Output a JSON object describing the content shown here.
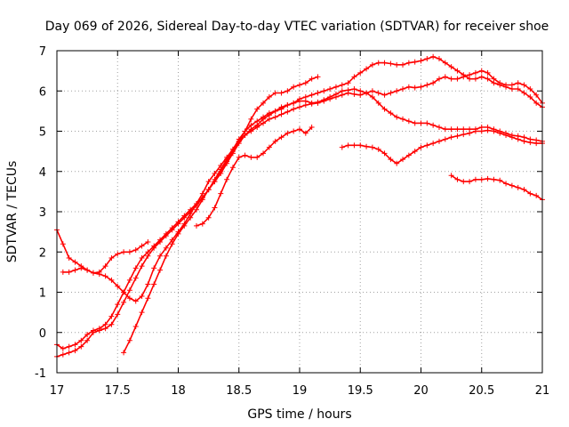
{
  "chart_data": {
    "type": "scatter",
    "title": "Day 069 of 2026, Sidereal Day-to-day VTEC variation (SDTVAR) for receiver shoe",
    "xlabel": "GPS time / hours",
    "ylabel": "SDTVAR / TECUs",
    "xlim": [
      17,
      21
    ],
    "ylim": [
      -1,
      7
    ],
    "x_ticks": [
      17,
      17.5,
      18,
      18.5,
      19,
      19.5,
      20,
      20.5,
      21
    ],
    "x_tick_labels": [
      "17",
      "17.5",
      "18",
      "18.5",
      "19",
      "19.5",
      "20",
      "20.5",
      "21"
    ],
    "y_ticks": [
      -1,
      0,
      1,
      2,
      3,
      4,
      5,
      6,
      7
    ],
    "y_tick_labels": [
      "-1",
      "0",
      "1",
      "2",
      "3",
      "4",
      "5",
      "6",
      "7"
    ],
    "grid": true,
    "marker": "+",
    "color": "#ff0000",
    "series": [
      {
        "name": "trace-1",
        "x": [
          17.0,
          17.05,
          17.1,
          17.15,
          17.2,
          17.25,
          17.3,
          17.35,
          17.4,
          17.45,
          17.5,
          17.55,
          17.6,
          17.65,
          17.7,
          17.75,
          17.8,
          17.85,
          17.9,
          17.95,
          18.0,
          18.05,
          18.1,
          18.15,
          18.2,
          18.25,
          18.3,
          18.35,
          18.4,
          18.45,
          18.5,
          18.55,
          18.6,
          18.65,
          18.7,
          18.75,
          18.8,
          18.85,
          18.9,
          18.95,
          19.0,
          19.05,
          19.1,
          19.15
        ],
        "y": [
          2.55,
          2.2,
          1.85,
          1.75,
          1.65,
          1.55,
          1.48,
          1.45,
          1.4,
          1.3,
          1.15,
          1.0,
          0.85,
          0.78,
          0.9,
          1.2,
          1.6,
          1.9,
          2.1,
          2.3,
          2.5,
          2.7,
          2.95,
          3.2,
          3.45,
          3.75,
          3.95,
          4.15,
          4.35,
          4.55,
          4.8,
          5.0,
          5.3,
          5.55,
          5.7,
          5.85,
          5.95,
          5.95,
          6.0,
          6.1,
          6.15,
          6.2,
          6.3,
          6.35
        ]
      },
      {
        "name": "trace-2",
        "x": [
          17.05,
          17.1,
          17.15,
          17.2,
          17.25,
          17.3,
          17.35,
          17.4,
          17.45,
          17.5,
          17.55,
          17.6,
          17.65,
          17.7,
          17.75
        ],
        "y": [
          1.5,
          1.5,
          1.55,
          1.6,
          1.55,
          1.48,
          1.5,
          1.65,
          1.85,
          1.95,
          2.0,
          2.0,
          2.05,
          2.15,
          2.25
        ]
      },
      {
        "name": "trace-3",
        "x": [
          17.0,
          17.05,
          17.1,
          17.15,
          17.2,
          17.25,
          17.3,
          17.35,
          17.4,
          17.45,
          17.5,
          17.55,
          17.6,
          17.65,
          17.7,
          17.75,
          17.8,
          17.85,
          17.9,
          17.95,
          18.0,
          18.05,
          18.1,
          18.15,
          18.2,
          18.25,
          18.3,
          18.35,
          18.4,
          18.45,
          18.5,
          18.55,
          18.6,
          18.65,
          18.7,
          18.75,
          18.8,
          18.85,
          18.9,
          18.95,
          19.0,
          19.05,
          19.1,
          19.15,
          19.2,
          19.25,
          19.3,
          19.35,
          19.4,
          19.45,
          19.5,
          19.55,
          19.6,
          19.65,
          19.7,
          19.75,
          19.8,
          19.85,
          19.9,
          19.95,
          20.0,
          20.05,
          20.1,
          20.15,
          20.2,
          20.25,
          20.3,
          20.35,
          20.4,
          20.45,
          20.5,
          20.55,
          20.6,
          20.65,
          20.7,
          20.75,
          20.8,
          20.85,
          20.9,
          20.95,
          21.0
        ],
        "y": [
          -0.3,
          -0.4,
          -0.35,
          -0.3,
          -0.2,
          -0.05,
          0.05,
          0.1,
          0.2,
          0.4,
          0.7,
          1.0,
          1.3,
          1.6,
          1.85,
          2.0,
          2.15,
          2.3,
          2.45,
          2.6,
          2.75,
          2.9,
          3.05,
          3.2,
          3.35,
          3.55,
          3.75,
          3.95,
          4.2,
          4.45,
          4.7,
          4.9,
          5.05,
          5.15,
          5.3,
          5.4,
          5.5,
          5.55,
          5.65,
          5.7,
          5.75,
          5.75,
          5.7,
          5.72,
          5.78,
          5.85,
          5.92,
          6.0,
          6.02,
          6.05,
          6.0,
          5.95,
          5.85,
          5.7,
          5.55,
          5.45,
          5.35,
          5.3,
          5.25,
          5.2,
          5.2,
          5.2,
          5.15,
          5.1,
          5.05,
          5.05,
          5.05,
          5.05,
          5.05,
          5.05,
          5.1,
          5.1,
          5.05,
          5.0,
          4.95,
          4.9,
          4.88,
          4.85,
          4.8,
          4.78,
          4.75
        ]
      },
      {
        "name": "trace-4",
        "x": [
          17.0,
          17.05,
          17.1,
          17.15,
          17.2,
          17.25,
          17.3,
          17.35,
          17.4,
          17.45,
          17.5,
          17.55,
          17.6,
          17.65,
          17.7,
          17.75,
          17.8,
          17.85,
          17.9,
          17.95,
          18.0,
          18.05,
          18.1,
          18.15,
          18.2,
          18.25,
          18.3,
          18.35,
          18.4,
          18.45,
          18.5,
          18.55,
          18.6,
          18.65,
          18.7,
          18.75,
          18.8,
          18.85,
          18.9,
          18.95,
          19.0,
          19.05,
          19.1,
          19.15,
          19.2,
          19.25,
          19.3,
          19.35,
          19.4,
          19.45,
          19.5,
          19.55,
          19.6,
          19.65,
          19.7,
          19.75,
          19.8,
          19.85,
          19.9,
          19.95,
          20.0,
          20.05,
          20.1,
          20.15,
          20.2,
          20.25,
          20.3,
          20.35,
          20.4,
          20.45,
          20.5,
          20.55,
          20.6,
          20.65,
          20.7,
          20.75,
          20.8,
          20.85,
          20.9,
          20.95,
          21.0
        ],
        "y": [
          -0.6,
          -0.55,
          -0.5,
          -0.45,
          -0.35,
          -0.2,
          0.0,
          0.05,
          0.1,
          0.2,
          0.45,
          0.75,
          1.05,
          1.35,
          1.65,
          1.9,
          2.1,
          2.25,
          2.4,
          2.55,
          2.7,
          2.85,
          3.0,
          3.15,
          3.35,
          3.55,
          3.75,
          4.0,
          4.25,
          4.5,
          4.75,
          5.0,
          5.15,
          5.25,
          5.35,
          5.45,
          5.5,
          5.6,
          5.65,
          5.7,
          5.8,
          5.85,
          5.9,
          5.95,
          6.0,
          6.05,
          6.1,
          6.15,
          6.2,
          6.35,
          6.45,
          6.55,
          6.65,
          6.7,
          6.7,
          6.68,
          6.65,
          6.65,
          6.7,
          6.72,
          6.75,
          6.8,
          6.85,
          6.8,
          6.7,
          6.6,
          6.5,
          6.4,
          6.3,
          6.3,
          6.35,
          6.3,
          6.2,
          6.15,
          6.1,
          6.05,
          6.05,
          5.95,
          5.85,
          5.7,
          5.6
        ]
      },
      {
        "name": "trace-5",
        "x": [
          17.55,
          17.6,
          17.65,
          17.7,
          17.75,
          17.8,
          17.85,
          17.9,
          17.95,
          18.0,
          18.05,
          18.1,
          18.15,
          18.2,
          18.25,
          18.3,
          18.35,
          18.4,
          18.45,
          18.5,
          18.55,
          18.6,
          18.65,
          18.7,
          18.75,
          18.8,
          18.85,
          18.9,
          18.95,
          19.0,
          19.05,
          19.1,
          19.15,
          19.2,
          19.25,
          19.3,
          19.35,
          19.4,
          19.45,
          19.5,
          19.55,
          19.6,
          19.65,
          19.7,
          19.75,
          19.8,
          19.85,
          19.9,
          19.95,
          20.0,
          20.05,
          20.1,
          20.15,
          20.2,
          20.25,
          20.3,
          20.35,
          20.4,
          20.45,
          20.5,
          20.55,
          20.6,
          20.65,
          20.7,
          20.75,
          20.8,
          20.85,
          20.9,
          20.95,
          21.0
        ],
        "y": [
          -0.5,
          -0.2,
          0.15,
          0.5,
          0.85,
          1.2,
          1.55,
          1.9,
          2.2,
          2.45,
          2.65,
          2.85,
          3.05,
          3.3,
          3.55,
          3.8,
          4.05,
          4.3,
          4.55,
          4.75,
          4.9,
          5.0,
          5.1,
          5.2,
          5.3,
          5.35,
          5.42,
          5.48,
          5.55,
          5.6,
          5.65,
          5.68,
          5.7,
          5.75,
          5.8,
          5.85,
          5.9,
          5.95,
          5.92,
          5.9,
          5.95,
          6.0,
          5.95,
          5.9,
          5.95,
          6.0,
          6.05,
          6.1,
          6.08,
          6.1,
          6.15,
          6.2,
          6.3,
          6.35,
          6.3,
          6.3,
          6.35,
          6.4,
          6.45,
          6.5,
          6.45,
          6.3,
          6.2,
          6.15,
          6.15,
          6.2,
          6.15,
          6.05,
          5.9,
          5.7
        ]
      },
      {
        "name": "trace-6",
        "x": [
          18.15,
          18.2,
          18.25,
          18.3,
          18.35,
          18.4,
          18.45,
          18.5,
          18.55,
          18.6,
          18.65,
          18.7,
          18.75,
          18.8,
          18.85,
          18.9,
          18.95,
          19.0,
          19.05,
          19.1
        ],
        "y": [
          2.65,
          2.7,
          2.85,
          3.1,
          3.45,
          3.8,
          4.1,
          4.35,
          4.4,
          4.35,
          4.35,
          4.45,
          4.6,
          4.75,
          4.85,
          4.95,
          5.0,
          5.05,
          4.95,
          5.1
        ]
      },
      {
        "name": "trace-7",
        "x": [
          19.35,
          19.4,
          19.45,
          19.5,
          19.55,
          19.6,
          19.65,
          19.7,
          19.75,
          19.8,
          19.85,
          19.9,
          19.95,
          20.0,
          20.05,
          20.1,
          20.15,
          20.2,
          20.25,
          20.3,
          20.35,
          20.4,
          20.45,
          20.5,
          20.55,
          20.6,
          20.65,
          20.7,
          20.75,
          20.8,
          20.85,
          20.9,
          20.95,
          21.0
        ],
        "y": [
          4.6,
          4.65,
          4.65,
          4.65,
          4.62,
          4.6,
          4.55,
          4.45,
          4.3,
          4.2,
          4.3,
          4.4,
          4.5,
          4.6,
          4.65,
          4.7,
          4.75,
          4.8,
          4.85,
          4.88,
          4.92,
          4.95,
          5.0,
          5.0,
          5.02,
          5.0,
          4.95,
          4.9,
          4.85,
          4.8,
          4.75,
          4.72,
          4.7,
          4.7
        ]
      },
      {
        "name": "trace-8",
        "x": [
          20.25,
          20.3,
          20.35,
          20.4,
          20.45,
          20.5,
          20.55,
          20.6,
          20.65,
          20.7,
          20.75,
          20.8,
          20.85,
          20.9,
          20.95,
          21.0
        ],
        "y": [
          3.9,
          3.8,
          3.75,
          3.75,
          3.8,
          3.8,
          3.82,
          3.8,
          3.78,
          3.7,
          3.65,
          3.6,
          3.55,
          3.45,
          3.4,
          3.3
        ]
      }
    ]
  }
}
